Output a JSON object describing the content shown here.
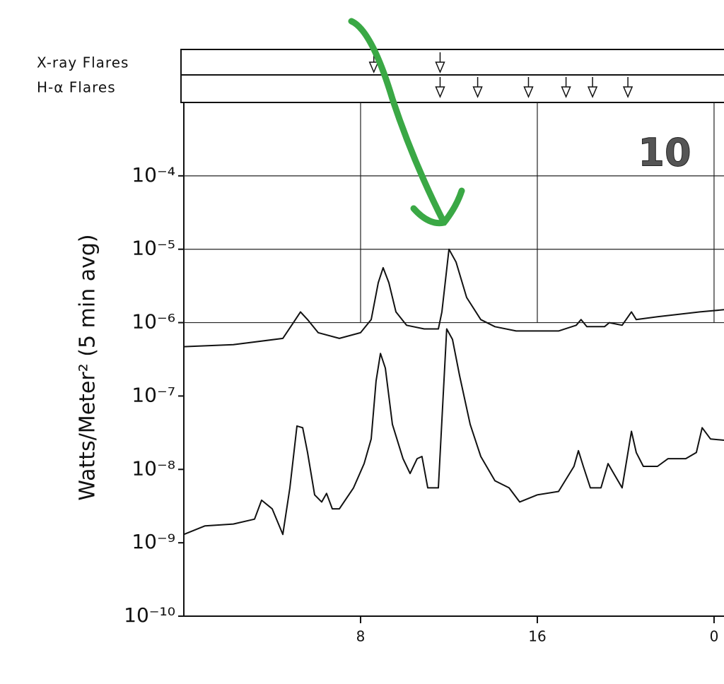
{
  "chart_data": {
    "type": "line",
    "ylabel": "Watts/Meter² (5 min avg)",
    "annotation": "10",
    "ylog": true,
    "grid": true,
    "xlim": [
      0,
      24.45
    ],
    "ylim": [
      1e-10,
      0.001
    ],
    "xticks": [
      8,
      16,
      {
        "value": 24,
        "label": "0"
      }
    ],
    "yticks": [
      {
        "value": 0.0001,
        "label": "10⁻⁴"
      },
      {
        "value": 1e-05,
        "label": "10⁻⁵"
      },
      {
        "value": 1e-06,
        "label": "10⁻⁶"
      },
      {
        "value": 1e-07,
        "label": "10⁻⁷"
      },
      {
        "value": 1e-08,
        "label": "10⁻⁸"
      },
      {
        "value": 1e-09,
        "label": "10⁻⁹"
      },
      {
        "value": 1e-10,
        "label": "10⁻¹⁰"
      }
    ],
    "flare_rows": [
      {
        "name": "X-ray Flares",
        "x": [
          8.6,
          11.6
        ]
      },
      {
        "name": "H-α Flares",
        "x": [
          11.6,
          13.3,
          15.6,
          17.3,
          18.5,
          20.1
        ]
      }
    ],
    "series": [
      {
        "color": "#111111",
        "x": [
          0,
          2.24,
          4.48,
          4.96,
          5.28,
          5.6,
          6.08,
          7.04,
          8.0,
          8.48,
          8.8,
          9.02,
          9.28,
          9.6,
          10.08,
          10.88,
          11.52,
          11.68,
          12.0,
          12.32,
          12.8,
          13.44,
          14.08,
          15.04,
          16.96,
          17.76,
          17.98,
          18.24,
          19.04,
          19.26,
          19.84,
          20.26,
          20.48,
          21.44,
          23.36,
          24.45
        ],
        "values": [
          4.7e-07,
          5e-07,
          6.1e-07,
          1e-06,
          1.4e-06,
          1.1e-06,
          7.3e-07,
          6.1e-07,
          7.3e-07,
          1.1e-06,
          3.5e-06,
          5.6e-06,
          3.5e-06,
          1.4e-06,
          9.2e-07,
          8.2e-07,
          8.2e-07,
          1.4e-06,
          1e-05,
          6.7e-06,
          2.2e-06,
          1.1e-06,
          8.8e-07,
          7.7e-07,
          7.7e-07,
          9.2e-07,
          1.1e-06,
          8.8e-07,
          8.8e-07,
          1e-06,
          9.2e-07,
          1.4e-06,
          1.1e-06,
          1.2e-06,
          1.4e-06,
          1.5e-06
        ]
      },
      {
        "color": "#111111",
        "x": [
          0,
          0.96,
          2.24,
          3.2,
          3.52,
          4.0,
          4.48,
          4.8,
          5.12,
          5.38,
          5.6,
          5.92,
          6.24,
          6.46,
          6.72,
          7.04,
          7.68,
          8.16,
          8.48,
          8.7,
          8.9,
          9.12,
          9.44,
          9.92,
          10.24,
          10.56,
          10.78,
          11.04,
          11.52,
          11.74,
          11.9,
          12.16,
          12.48,
          12.96,
          13.44,
          14.08,
          14.72,
          15.2,
          16.0,
          16.96,
          17.66,
          17.86,
          18.08,
          18.4,
          18.88,
          19.2,
          19.46,
          19.84,
          20.26,
          20.48,
          20.8,
          21.44,
          21.92,
          22.72,
          23.2,
          23.46,
          23.84,
          24.45
        ],
        "values": [
          1.3e-09,
          1.7e-09,
          1.8e-09,
          2.1e-09,
          3.8e-09,
          2.9e-09,
          1.3e-09,
          5.6e-09,
          3.9e-08,
          3.7e-08,
          1.7e-08,
          4.5e-09,
          3.6e-09,
          4.7e-09,
          2.9e-09,
          2.9e-09,
          5.6e-09,
          1.2e-08,
          2.6e-08,
          1.6e-07,
          3.8e-07,
          2.4e-07,
          4.1e-08,
          1.4e-08,
          8.8e-09,
          1.4e-08,
          1.5e-08,
          5.6e-09,
          5.6e-09,
          1e-07,
          8.2e-07,
          5.9e-07,
          1.9e-07,
          4.1e-08,
          1.5e-08,
          7e-09,
          5.6e-09,
          3.6e-09,
          4.5e-09,
          5e-09,
          1.1e-08,
          1.8e-08,
          1.1e-08,
          5.6e-09,
          5.6e-09,
          1.2e-08,
          8.8e-09,
          5.6e-09,
          3.3e-08,
          1.7e-08,
          1.1e-08,
          1.1e-08,
          1.4e-08,
          1.4e-08,
          1.7e-08,
          3.7e-08,
          2.6e-08,
          2.5e-08
        ]
      }
    ]
  }
}
